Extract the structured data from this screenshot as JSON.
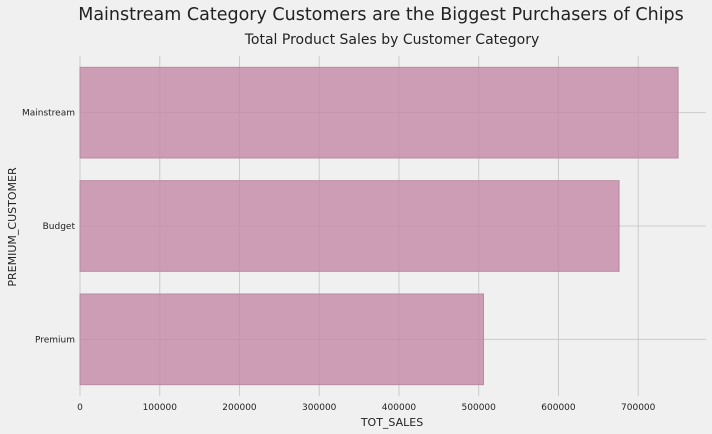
{
  "figure": {
    "suptitle": "Mainstream Category Customers are the Biggest Purchasers of Chips"
  },
  "chart_data": {
    "type": "bar",
    "orientation": "horizontal",
    "title": "Total Product Sales by Customer Category",
    "xlabel": "TOT_SALES",
    "ylabel": "PREMIUM_CUSTOMER",
    "categories": [
      "Mainstream",
      "Budget",
      "Premium"
    ],
    "values": [
      750000,
      676000,
      506000
    ],
    "xlim": [
      0,
      785000
    ],
    "xticks": [
      0,
      100000,
      200000,
      300000,
      400000,
      500000,
      600000,
      700000
    ],
    "xtick_labels": [
      "0",
      "100000",
      "200000",
      "300000",
      "400000",
      "500000",
      "600000",
      "700000"
    ],
    "grid": true,
    "bar_color": "#c48aa8",
    "bar_edge_color": "#b88aa2",
    "background_color": "#f0f0f0",
    "grid_color": "#cbcbcb"
  }
}
